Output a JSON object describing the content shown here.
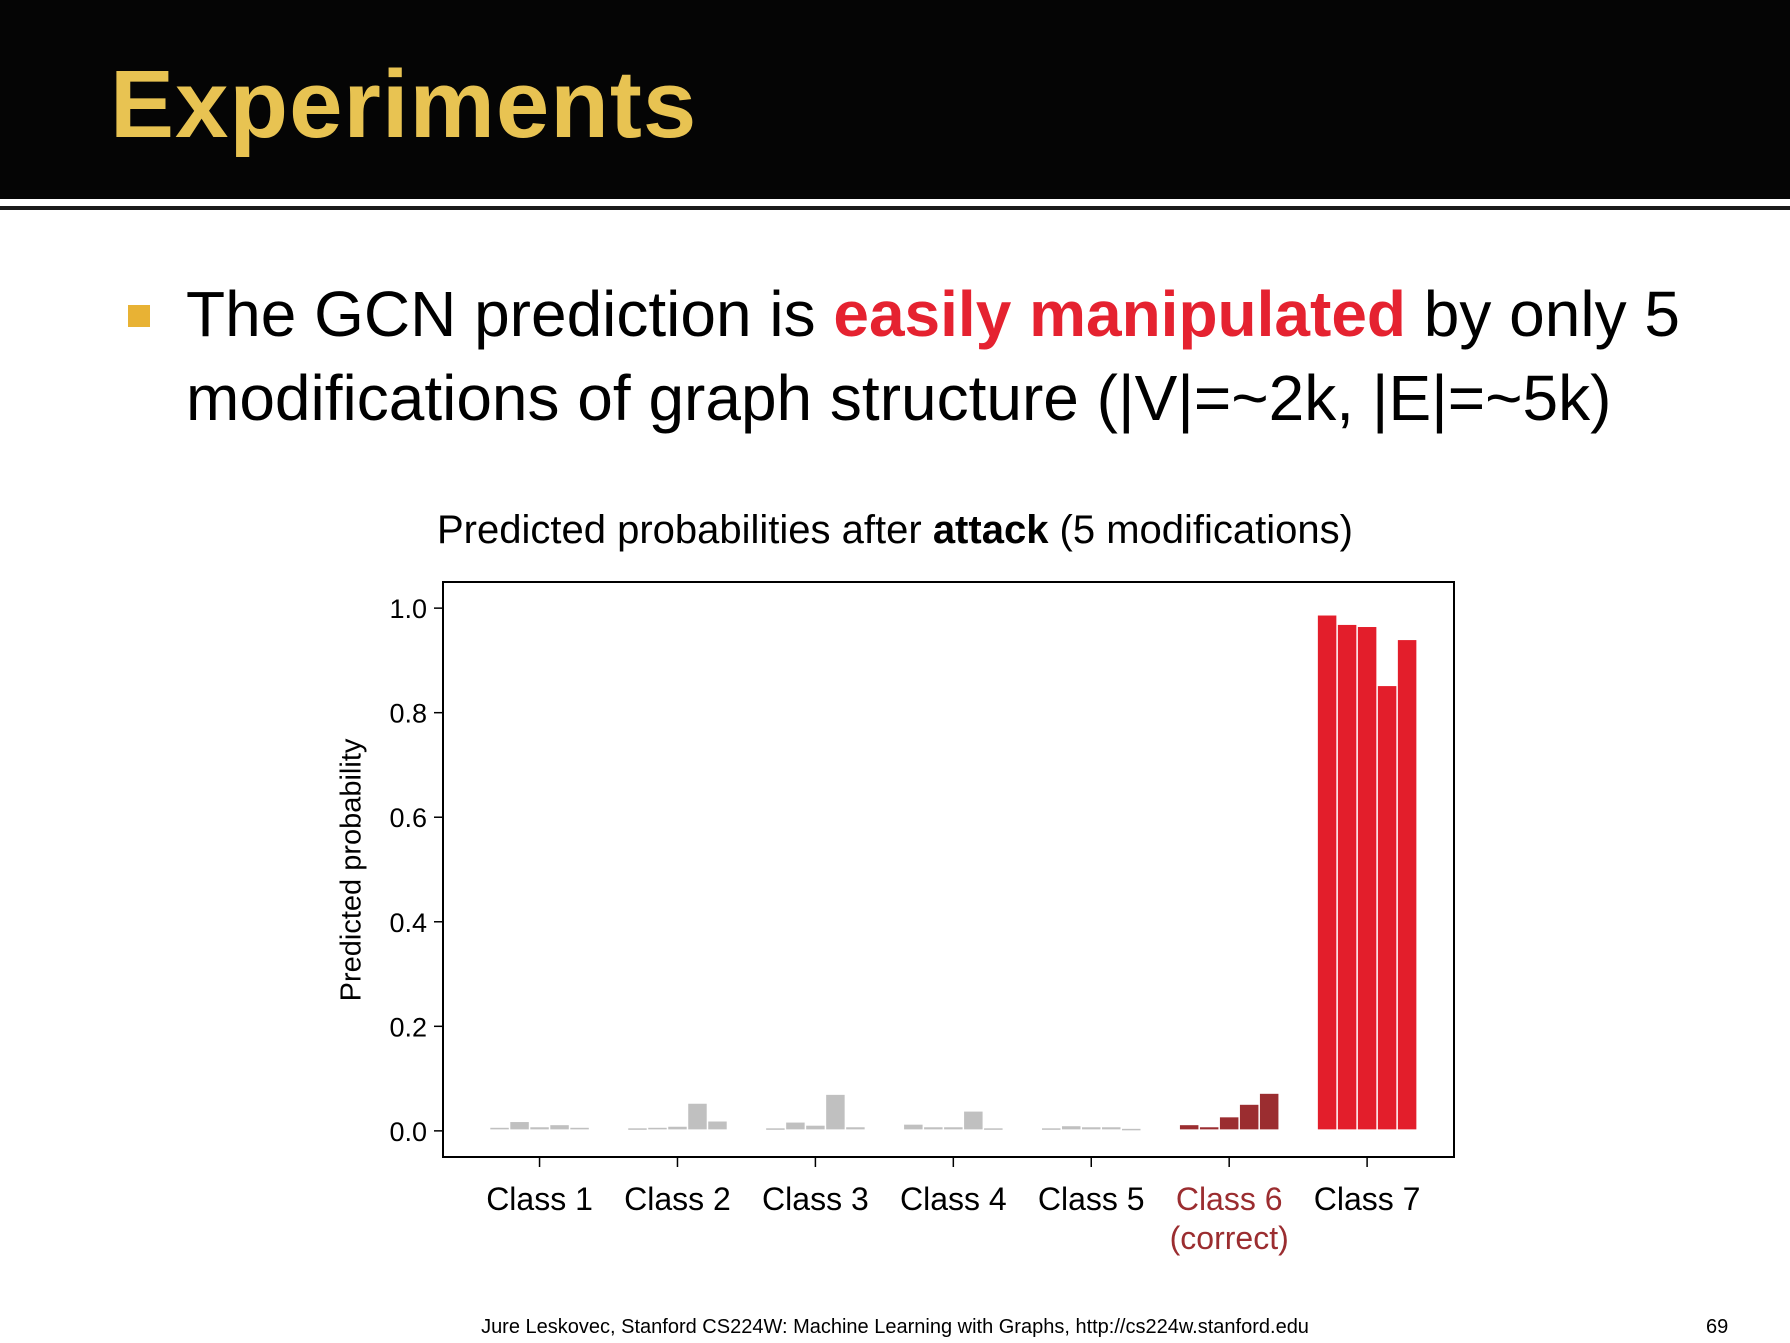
{
  "slide": {
    "title": "Experiments",
    "bullet": {
      "before": "The GCN prediction is ",
      "highlight": "easily manipulated",
      "after": " by only 5 modifications of graph structure (|V|=~2k, |E|=~5k)"
    },
    "footer": "Jure Leskovec, Stanford CS224W: Machine Learning with Graphs, http://cs224w.stanford.edu",
    "page_number": "69"
  },
  "chart_data": {
    "type": "bar",
    "title_prefix": "Predicted probabilities after ",
    "title_bold": "attack",
    "title_suffix": " (5 modifications)",
    "ylabel": "Predicted probability",
    "xlabel": "",
    "ylim": [
      -0.05,
      1.05
    ],
    "yticks": [
      "0.0",
      "0.2",
      "0.4",
      "0.6",
      "0.8",
      "1.0"
    ],
    "categories": [
      "Class 1",
      "Class 2",
      "Class 3",
      "Class 4",
      "Class 5",
      "Class 6",
      "Class 7"
    ],
    "category_sublabels": [
      "",
      "",
      "",
      "",
      "",
      "(correct)",
      ""
    ],
    "bars_per_category": 5,
    "values": [
      [
        0.003,
        0.014,
        0.004,
        0.008,
        0.003
      ],
      [
        0.002,
        0.003,
        0.005,
        0.049,
        0.015
      ],
      [
        0.002,
        0.013,
        0.007,
        0.066,
        0.004
      ],
      [
        0.009,
        0.004,
        0.004,
        0.034,
        0.002
      ],
      [
        0.002,
        0.006,
        0.004,
        0.004,
        0.001
      ],
      [
        0.008,
        0.004,
        0.023,
        0.047,
        0.068
      ],
      [
        0.983,
        0.965,
        0.961,
        0.848,
        0.936
      ]
    ],
    "colors": [
      "#c0c0c0",
      "#c0c0c0",
      "#c0c0c0",
      "#c0c0c0",
      "#c0c0c0",
      "#9b2d30",
      "#e31e2b"
    ],
    "grid": false,
    "legend": "none"
  }
}
